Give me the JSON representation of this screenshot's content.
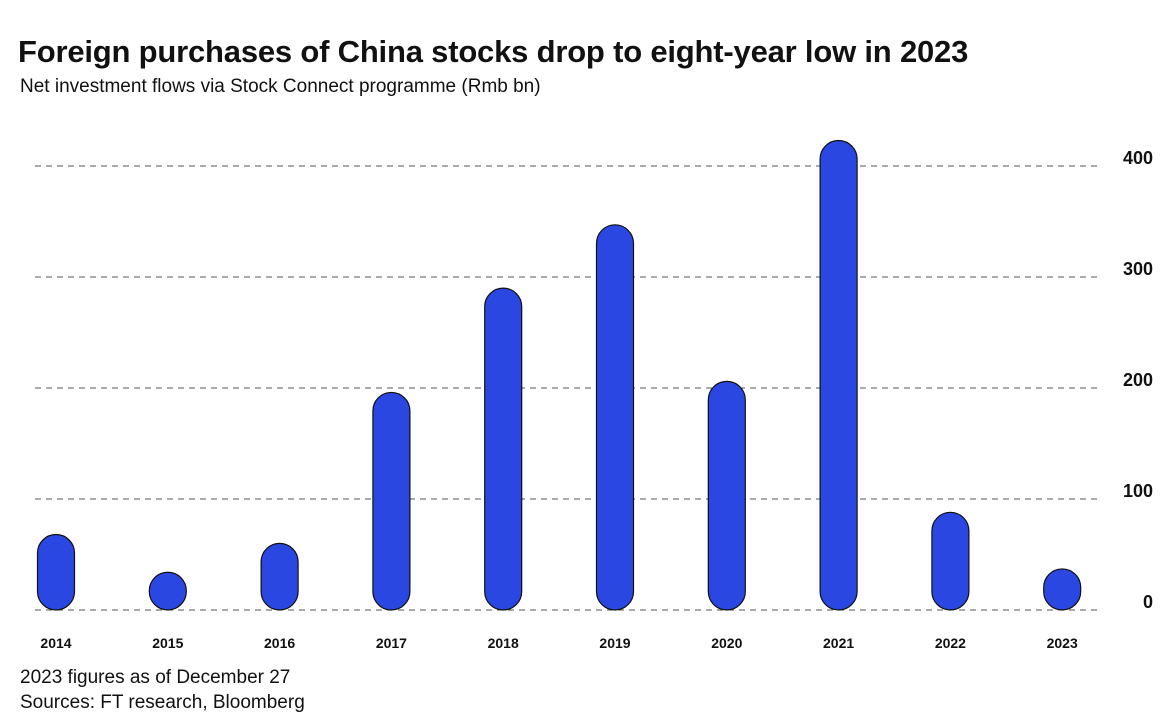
{
  "title": "Foreign purchases of China stocks drop to eight-year low in 2023",
  "subtitle": "Net investment flows via Stock Connect programme (Rmb bn)",
  "footnote": "2023 figures as of December 27",
  "source": "Sources: FT research, Bloomberg",
  "colors": {
    "bar": "#2b47e2",
    "bar_outline": "#111111",
    "grid": "#555555"
  },
  "chart_data": {
    "type": "bar",
    "categories": [
      "2014",
      "2015",
      "2016",
      "2017",
      "2018",
      "2019",
      "2020",
      "2021",
      "2022",
      "2023"
    ],
    "values": [
      68,
      34,
      60,
      196,
      290,
      347,
      206,
      423,
      88,
      37
    ],
    "title": "Foreign purchases of China stocks drop to eight-year low in 2023",
    "subtitle": "Net investment flows via Stock Connect programme (Rmb bn)",
    "xlabel": "",
    "ylabel": "",
    "ylim": [
      0,
      430
    ],
    "yticks": [
      0,
      100,
      200,
      300,
      400
    ],
    "grid": true,
    "grid_style": "dashed",
    "y_axis_side": "right",
    "bar_style": "rounded pill"
  }
}
